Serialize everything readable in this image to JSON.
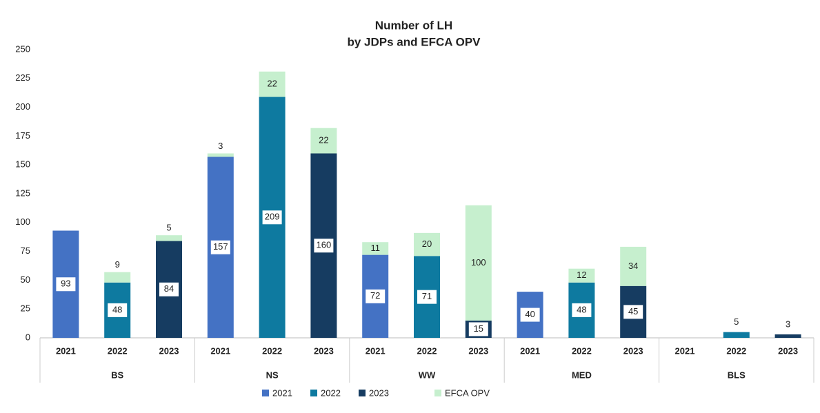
{
  "chart_data": {
    "type": "stacked-bar",
    "title": [
      "Number of LH",
      "by JDPs and EFCA OPV"
    ],
    "groups": [
      "BS",
      "NS",
      "WW",
      "MED",
      "BLS"
    ],
    "categories": [
      "2021",
      "2022",
      "2023",
      "2021",
      "2022",
      "2023",
      "2021",
      "2022",
      "2023",
      "2021",
      "2022",
      "2023",
      "2021",
      "2022",
      "2023"
    ],
    "series": [
      {
        "name": "2021",
        "color": "#4472c4",
        "values": [
          93,
          null,
          null,
          157,
          null,
          null,
          72,
          null,
          null,
          40,
          null,
          null,
          null,
          null,
          null
        ]
      },
      {
        "name": "2022",
        "color": "#0e7aa0",
        "values": [
          null,
          48,
          null,
          null,
          209,
          null,
          null,
          71,
          null,
          null,
          48,
          null,
          null,
          5,
          null
        ]
      },
      {
        "name": "2023",
        "color": "#163c61",
        "values": [
          null,
          null,
          84,
          null,
          null,
          160,
          null,
          null,
          15,
          null,
          null,
          45,
          null,
          null,
          3
        ]
      },
      {
        "name": "EFCA OPV",
        "color": "#c6efce",
        "values": [
          null,
          9,
          5,
          3,
          22,
          22,
          11,
          20,
          100,
          null,
          12,
          34,
          null,
          null,
          null
        ]
      }
    ],
    "ylim": [
      0,
      250
    ],
    "yticks": [
      0,
      25,
      50,
      75,
      100,
      125,
      150,
      175,
      200,
      225,
      250
    ],
    "grid": false
  }
}
